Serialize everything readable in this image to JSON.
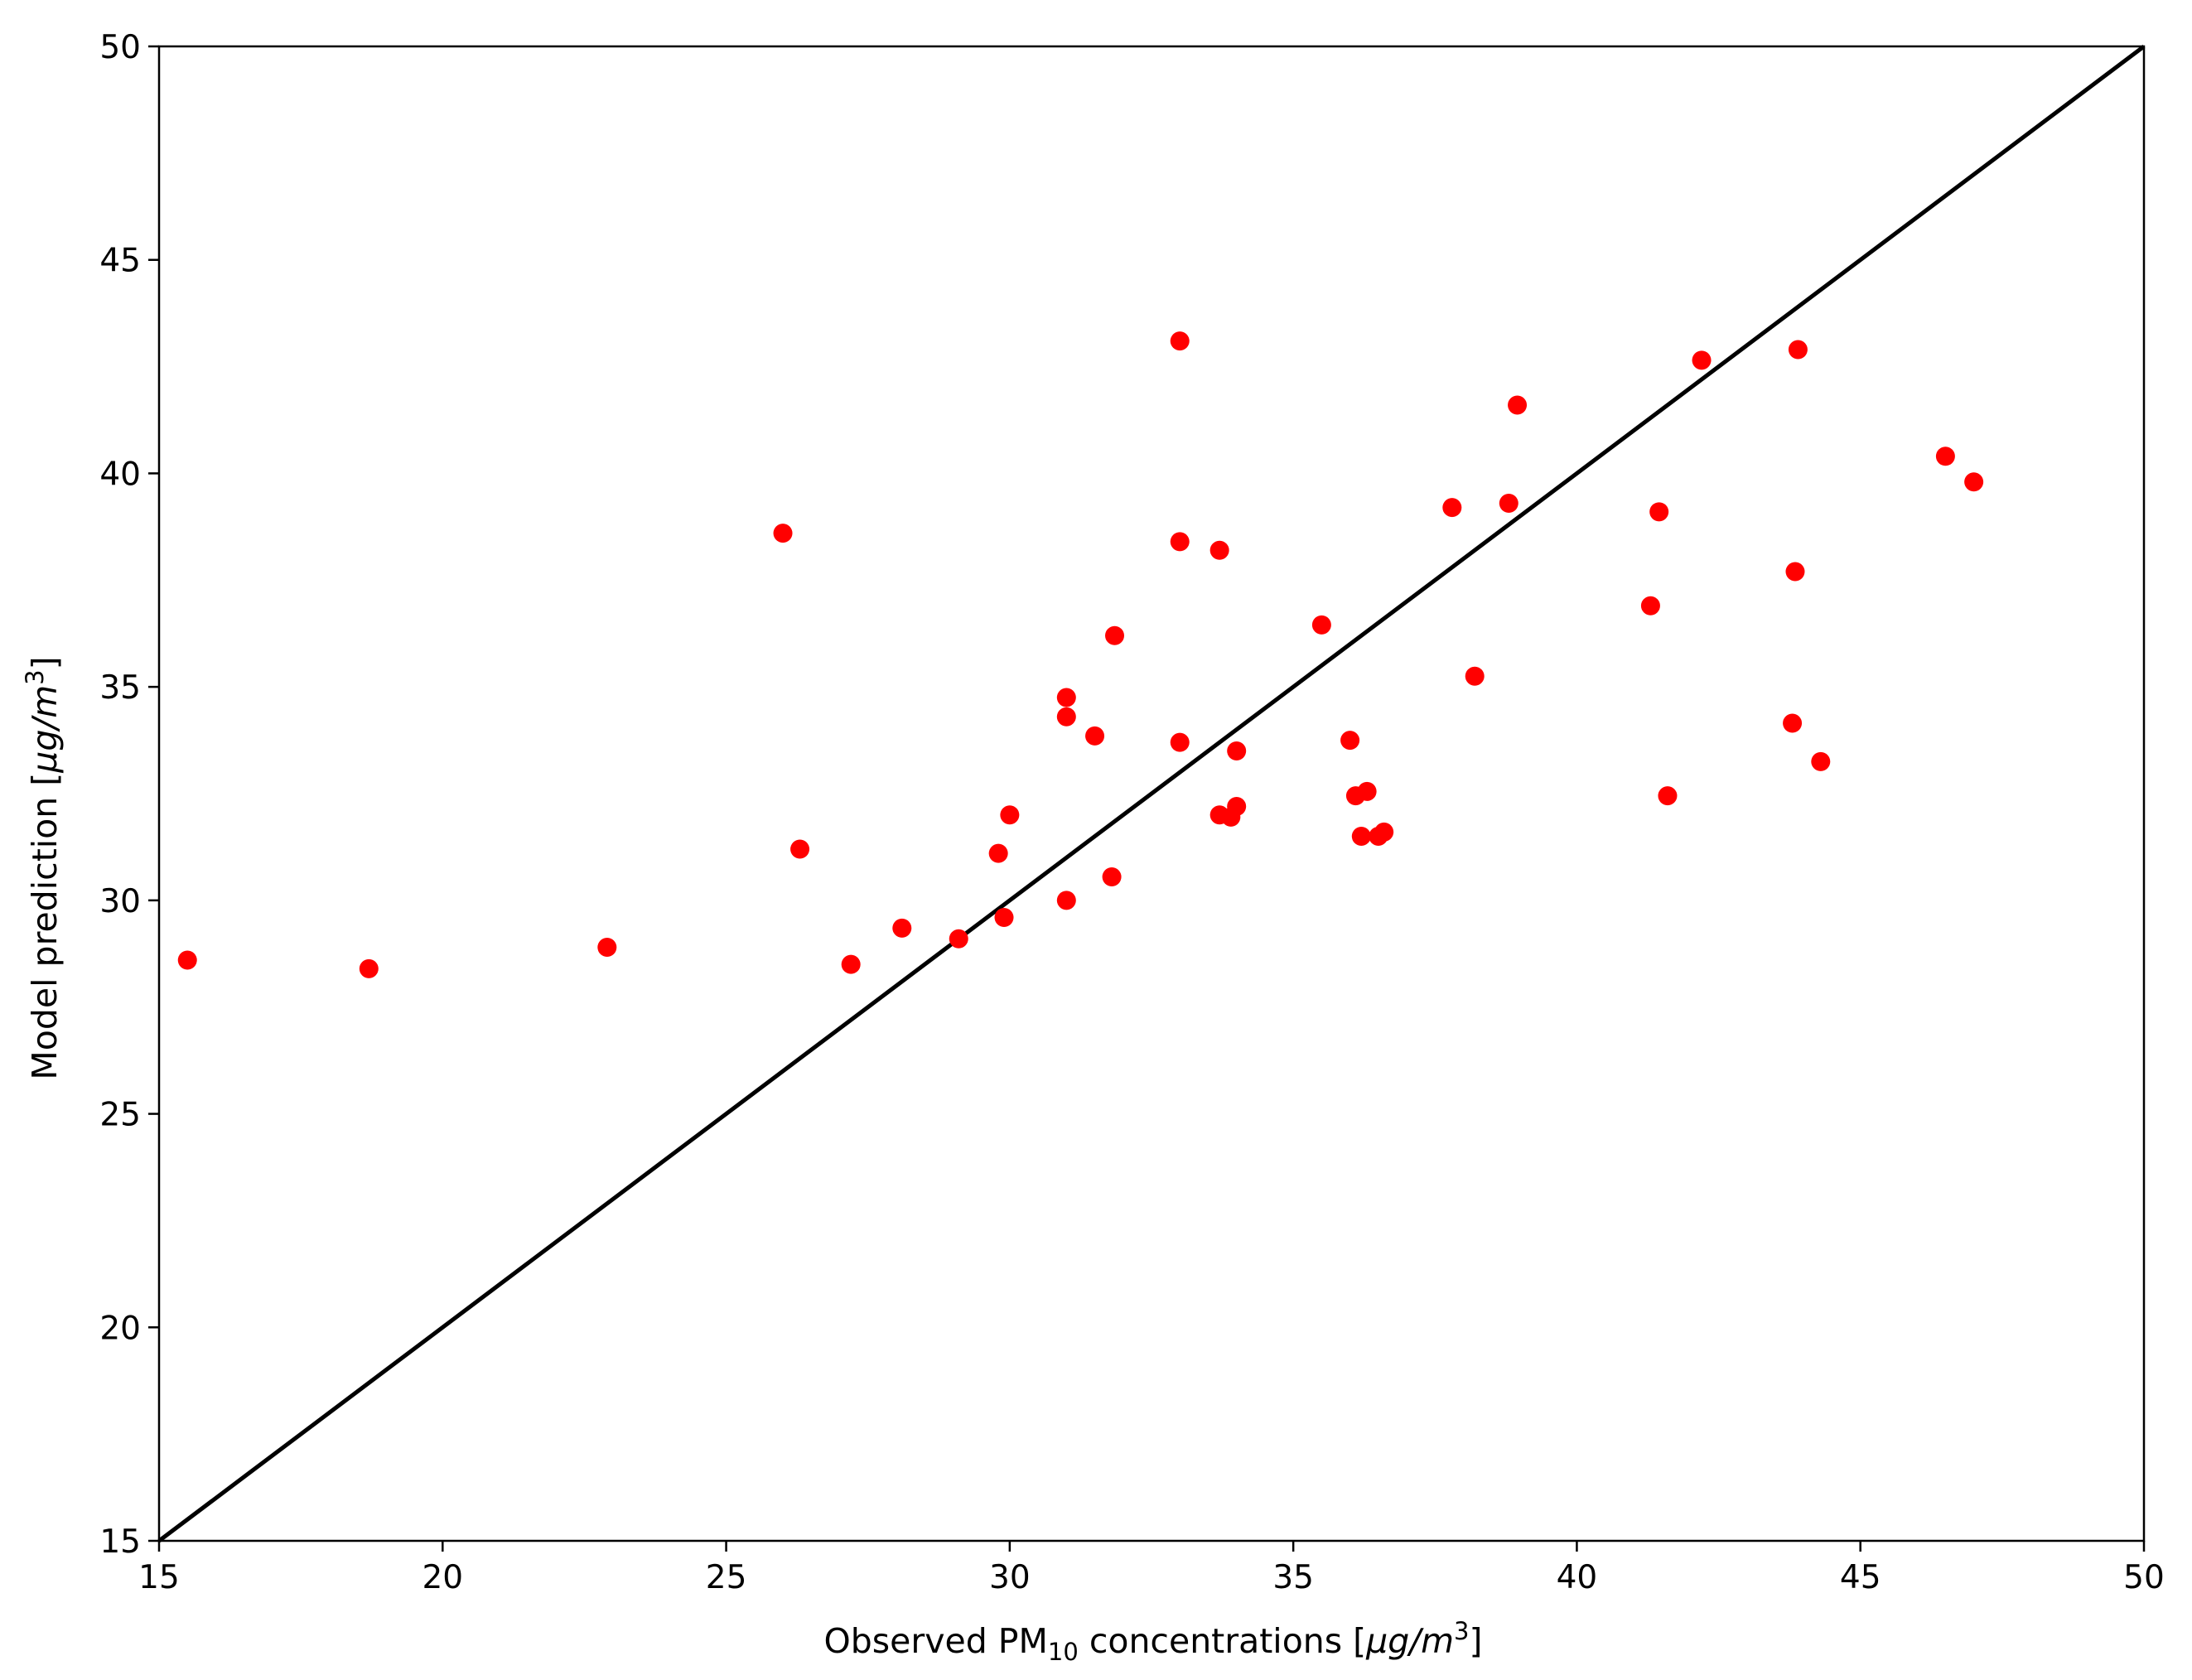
{
  "chart_data": {
    "type": "scatter",
    "xlabel": {
      "prefix": "Observed PM",
      "subscript": "10",
      "middle": " concentrations [",
      "unit_main": "μg/m",
      "unit_sup": "3",
      "suffix": "]"
    },
    "ylabel": {
      "prefix": "Model prediction [",
      "unit_main": "μg/m",
      "unit_sup": "3",
      "suffix": "]"
    },
    "xlim": [
      15,
      50
    ],
    "ylim": [
      15,
      50
    ],
    "xticks": [
      15,
      20,
      25,
      30,
      35,
      40,
      45,
      50
    ],
    "yticks": [
      15,
      20,
      25,
      30,
      35,
      40,
      45,
      50
    ],
    "grid": false,
    "legend": false,
    "point_color": "#ff0000",
    "reference_line": {
      "from": [
        15,
        15
      ],
      "to": [
        50,
        50
      ],
      "color": "#000000"
    },
    "points": [
      [
        15.5,
        28.6
      ],
      [
        18.7,
        28.4
      ],
      [
        22.9,
        28.9
      ],
      [
        26.0,
        38.6
      ],
      [
        26.3,
        31.2
      ],
      [
        27.2,
        28.5
      ],
      [
        28.1,
        29.35
      ],
      [
        29.1,
        29.1
      ],
      [
        29.8,
        31.1
      ],
      [
        29.9,
        29.6
      ],
      [
        30.0,
        32.0
      ],
      [
        31.0,
        34.75
      ],
      [
        31.0,
        34.3
      ],
      [
        31.0,
        30.0
      ],
      [
        31.5,
        33.85
      ],
      [
        31.8,
        30.55
      ],
      [
        31.85,
        36.2
      ],
      [
        33.0,
        43.1
      ],
      [
        33.0,
        38.4
      ],
      [
        33.0,
        33.7
      ],
      [
        33.7,
        38.2
      ],
      [
        33.7,
        32.0
      ],
      [
        33.9,
        31.95
      ],
      [
        34.0,
        33.5
      ],
      [
        34.0,
        32.2
      ],
      [
        35.5,
        36.45
      ],
      [
        36.0,
        33.75
      ],
      [
        36.1,
        32.45
      ],
      [
        36.2,
        31.5
      ],
      [
        36.3,
        32.55
      ],
      [
        36.5,
        31.5
      ],
      [
        36.6,
        31.6
      ],
      [
        37.8,
        39.2
      ],
      [
        38.2,
        35.25
      ],
      [
        38.8,
        39.3
      ],
      [
        38.95,
        41.6
      ],
      [
        41.3,
        36.9
      ],
      [
        41.45,
        39.1
      ],
      [
        41.6,
        32.45
      ],
      [
        42.2,
        42.65
      ],
      [
        43.8,
        34.15
      ],
      [
        43.85,
        37.7
      ],
      [
        43.9,
        42.9
      ],
      [
        44.3,
        33.25
      ],
      [
        46.5,
        40.4
      ],
      [
        47.0,
        39.8
      ]
    ]
  }
}
